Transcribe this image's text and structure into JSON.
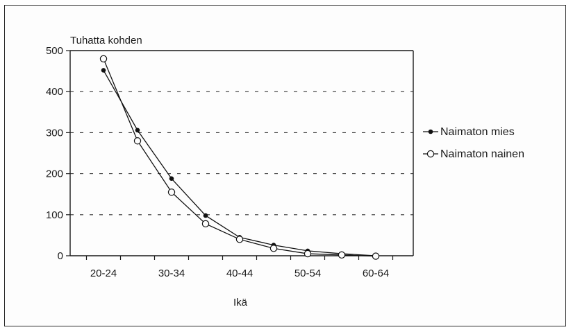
{
  "chart_data": {
    "type": "line",
    "ylabel": "Tuhatta kohden",
    "xlabel": "Ikä",
    "x": [
      "20-24",
      "25-29",
      "30-34",
      "35-39",
      "40-44",
      "45-49",
      "50-54",
      "55-59",
      "60-64"
    ],
    "xtick_labels": [
      "20-24",
      "",
      "30-34",
      "",
      "40-44",
      "",
      "50-54",
      "",
      "60-64"
    ],
    "yticks": [
      0,
      100,
      200,
      300,
      400,
      500
    ],
    "ylim": [
      0,
      500
    ],
    "grid": "horizontal-dashed",
    "legend_position": "right",
    "series": [
      {
        "name": "Naimaton mies",
        "marker": "filled-circle",
        "color": "#111111",
        "values": [
          452,
          306,
          188,
          98,
          45,
          26,
          12,
          5,
          0
        ]
      },
      {
        "name": "Naimaton nainen",
        "marker": "open-circle",
        "color": "#111111",
        "values": [
          480,
          280,
          155,
          78,
          40,
          18,
          5,
          2,
          -1
        ]
      }
    ]
  }
}
